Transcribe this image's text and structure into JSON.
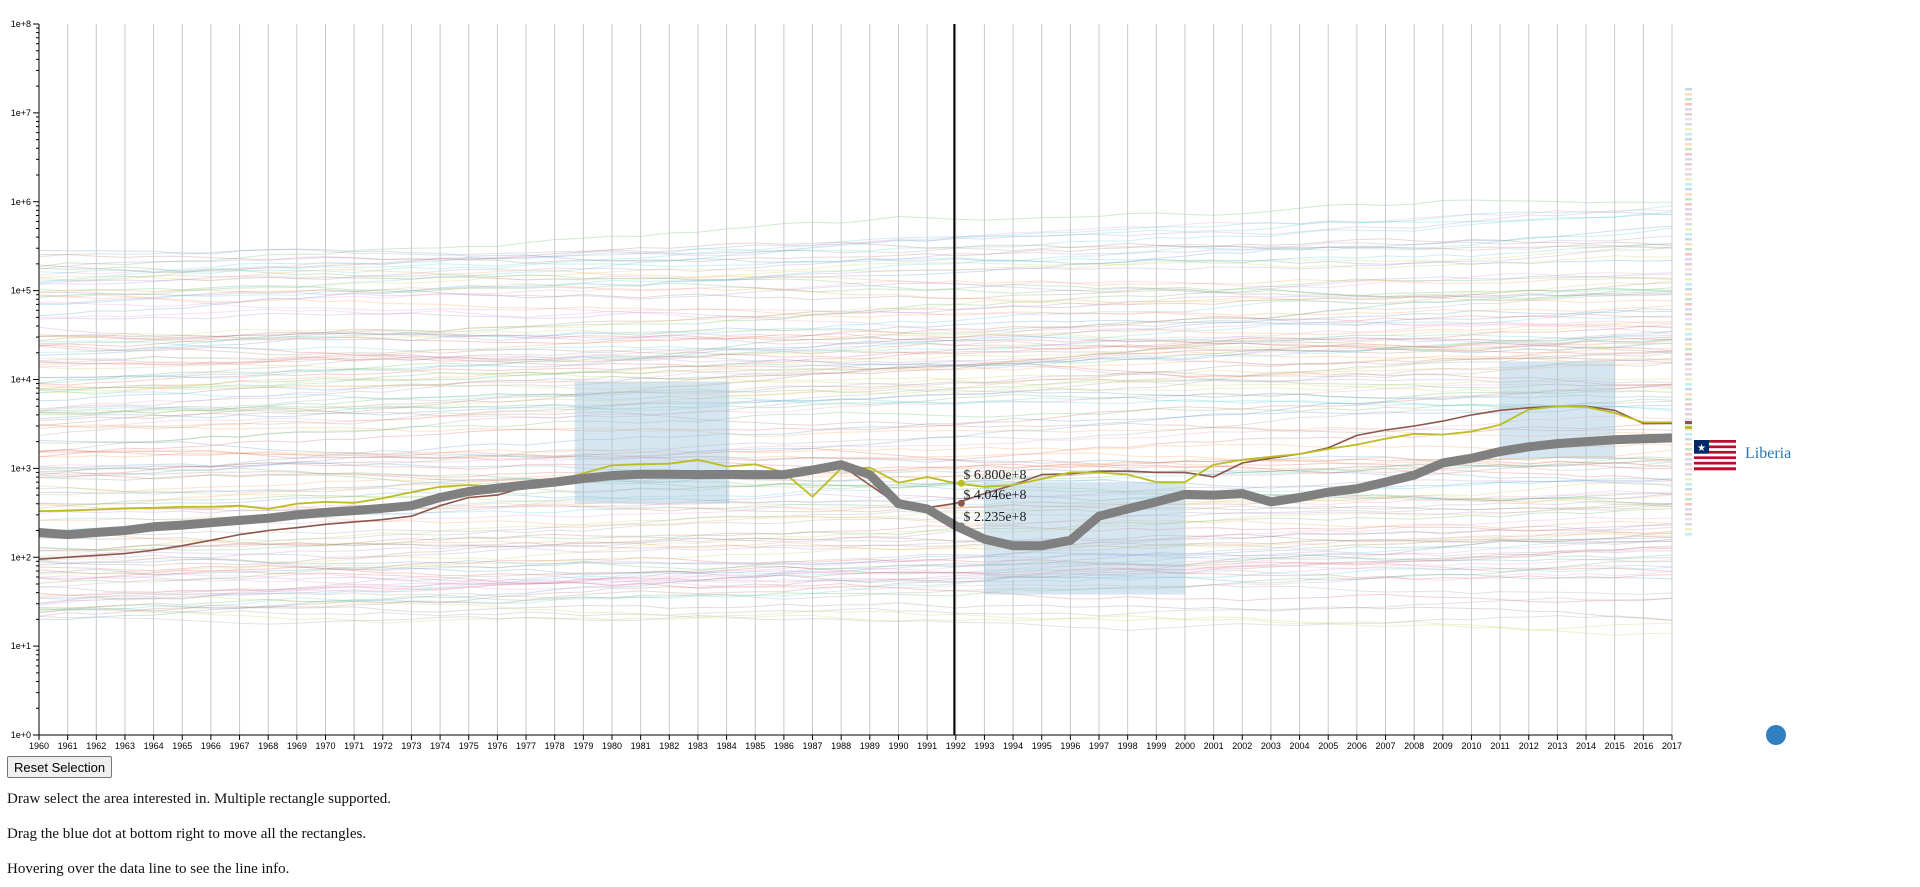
{
  "controls": {
    "reset_label": "Reset Selection"
  },
  "instructions": [
    "Draw select the area interested in. Multiple rectangle supported.",
    "Drag the blue dot at bottom right to move all the rectangles.",
    "Hovering over the data line to see the line info."
  ],
  "highlight": {
    "country": "Liberia",
    "flag_icon": "liberia-flag-icon"
  },
  "tooltip": {
    "year": 1992,
    "values": [
      "$ 6.800e+8",
      "$ 4.046e+8",
      "$ 2.235e+8"
    ]
  },
  "colors": {
    "grid": "#c8c8c8",
    "selection_fill": "#9ec3dc",
    "highlight_line": "#808080",
    "olive_line": "#bcbd22",
    "brown_line": "#8c564b",
    "drag_dot": "#2f7fc1",
    "cursor_line": "#000000"
  },
  "chart_data": {
    "type": "line",
    "y_scale": "log",
    "ylim": [
      1,
      100000000
    ],
    "y_ticks": [
      "1e+0",
      "1e+1",
      "1e+2",
      "1e+3",
      "1e+4",
      "1e+5",
      "1e+6",
      "1e+7",
      "1e+8"
    ],
    "x_start": 1960,
    "x_end": 2017,
    "x": [
      1960,
      1961,
      1962,
      1963,
      1964,
      1965,
      1966,
      1967,
      1968,
      1969,
      1970,
      1971,
      1972,
      1973,
      1974,
      1975,
      1976,
      1977,
      1978,
      1979,
      1980,
      1981,
      1982,
      1983,
      1984,
      1985,
      1986,
      1987,
      1988,
      1989,
      1990,
      1991,
      1992,
      1993,
      1994,
      1995,
      1996,
      1997,
      1998,
      1999,
      2000,
      2001,
      2002,
      2003,
      2004,
      2005,
      2006,
      2007,
      2008,
      2009,
      2010,
      2011,
      2012,
      2013,
      2014,
      2015,
      2016,
      2017
    ],
    "grid": true,
    "selections": [
      {
        "x": [
          1978.7,
          1984.1
        ],
        "y": [
          400,
          9500
        ]
      },
      {
        "x": [
          1993.0,
          2000.0
        ],
        "y": [
          38,
          700
        ]
      },
      {
        "x": [
          2011.0,
          2015.0
        ],
        "y": [
          1300,
          16000
        ]
      }
    ],
    "highlight_series": {
      "name": "Liberia",
      "values": [
        190,
        180,
        190,
        200,
        220,
        230,
        245,
        260,
        275,
        300,
        320,
        335,
        355,
        380,
        470,
        550,
        600,
        650,
        700,
        770,
        830,
        860,
        860,
        850,
        855,
        850,
        850,
        960,
        1100,
        850,
        400,
        350,
        225,
        160,
        135,
        135,
        155,
        290,
        350,
        420,
        510,
        500,
        520,
        420,
        470,
        540,
        590,
        700,
        840,
        1150,
        1300,
        1550,
        1750,
        1900,
        2000,
        2100,
        2150,
        2200
      ]
    },
    "series": [
      {
        "values": [
          330,
          335,
          345,
          355,
          360,
          370,
          370,
          380,
          350,
          400,
          420,
          410,
          460,
          540,
          620,
          650,
          620,
          640,
          720,
          880,
          1080,
          1110,
          1130,
          1250,
          1050,
          1110,
          900,
          480,
          1000,
          1020,
          690,
          800,
          680,
          620,
          650,
          760,
          900,
          900,
          850,
          700,
          700,
          1100,
          1250,
          1350,
          1450,
          1650,
          1850,
          2150,
          2450,
          2400,
          2600,
          3100,
          4600,
          5000,
          4900,
          4200,
          3300,
          3300
        ]
      },
      {
        "values": [
          95,
          100,
          105,
          110,
          120,
          135,
          155,
          180,
          200,
          215,
          235,
          250,
          265,
          290,
          380,
          470,
          500,
          620,
          720,
          830,
          860,
          860,
          860,
          850,
          850,
          850,
          860,
          990,
          1080,
          650,
          390,
          360,
          405,
          520,
          650,
          850,
          870,
          930,
          930,
          900,
          900,
          800,
          1150,
          1300,
          1450,
          1700,
          2350,
          2700,
          3000,
          3400,
          4000,
          4500,
          4800,
          5000,
          5000,
          4500,
          3200,
          3200
        ]
      }
    ]
  }
}
